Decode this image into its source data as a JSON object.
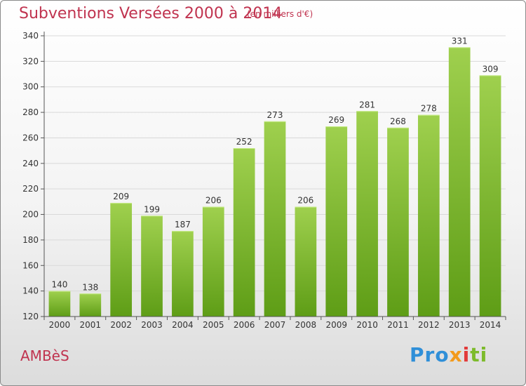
{
  "chart_data": {
    "type": "bar",
    "title": "Subventions Versées 2000 à 2014",
    "subtitle": "(en milliers d'€)",
    "xlabel": "",
    "ylabel": "",
    "categories": [
      "2000",
      "2001",
      "2002",
      "2003",
      "2004",
      "2005",
      "2006",
      "2007",
      "2008",
      "2009",
      "2010",
      "2011",
      "2012",
      "2013",
      "2014"
    ],
    "values": [
      140,
      138,
      209,
      199,
      187,
      206,
      252,
      273,
      206,
      269,
      281,
      268,
      278,
      331,
      309
    ],
    "ylim": [
      120,
      340
    ],
    "yticks": [
      "120",
      "140",
      "160",
      "180",
      "200",
      "220",
      "240",
      "260",
      "280",
      "300",
      "320",
      "340"
    ],
    "grid": true,
    "bar_color": "#7fb82d"
  },
  "footer": {
    "commune": "AMBèS",
    "logo": {
      "p1": "Pro",
      "p2": "x",
      "p3": "i",
      "p4": "ti"
    }
  }
}
